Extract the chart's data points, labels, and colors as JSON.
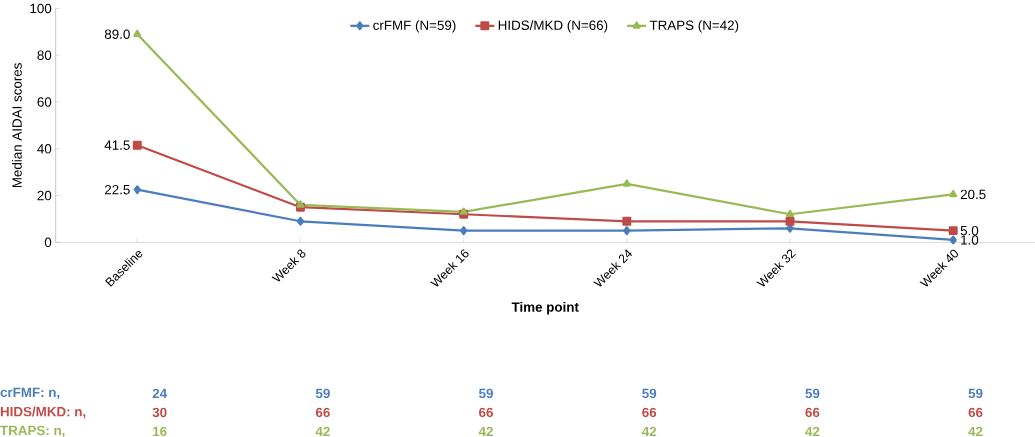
{
  "chart_data": {
    "type": "line",
    "xlabel": "Time point",
    "ylabel": "Median AIDAI scores",
    "categories": [
      "Baseline",
      "Week 8",
      "Week 16",
      "Week 24",
      "Week 32",
      "Week 40"
    ],
    "ylim": [
      0,
      100
    ],
    "yticks": [
      0,
      20,
      40,
      60,
      80,
      100
    ],
    "grid": false,
    "legend": "top",
    "series": [
      {
        "name": "crFMF (N=59)",
        "color": "#4a7ebb",
        "marker": "diamond",
        "values": [
          22.5,
          9,
          5,
          5,
          6,
          1.0
        ],
        "value_labels": [
          "22.5",
          null,
          null,
          null,
          null,
          "1.0"
        ]
      },
      {
        "name": "HIDS/MKD (N=66)",
        "color": "#be4b48",
        "marker": "square",
        "values": [
          41.5,
          15,
          12,
          9,
          9,
          5.0
        ],
        "value_labels": [
          "41.5",
          null,
          null,
          null,
          null,
          "5.0"
        ]
      },
      {
        "name": "TRAPS (N=42)",
        "color": "#98b954",
        "marker": "triangle",
        "values": [
          89.0,
          16,
          13,
          25,
          12,
          20.5
        ],
        "value_labels": [
          "89.0",
          null,
          null,
          null,
          null,
          "20.5"
        ]
      }
    ],
    "annotations": [
      "crFMF:  n,",
      "24",
      "59",
      "59",
      "59",
      "59",
      "59",
      "HIDS/MKD:  n,",
      "30",
      "66",
      "66",
      "66",
      "66",
      "66",
      "TRAPS:  n,",
      "16",
      "42",
      "42",
      "42",
      "42",
      "42"
    ]
  }
}
